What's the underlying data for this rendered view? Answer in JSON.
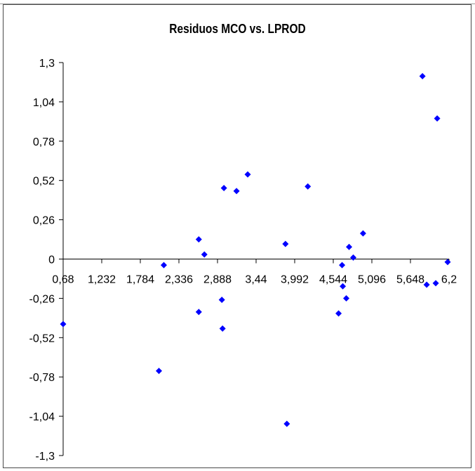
{
  "chart_data": {
    "type": "scatter",
    "title": "Residuos MCO vs. LPROD",
    "xlabel": "",
    "ylabel": "",
    "xlim": [
      0.68,
      6.2
    ],
    "ylim": [
      -1.3,
      1.3
    ],
    "x_ticks": [
      "0,68",
      "1,232",
      "1,784",
      "2,336",
      "2,888",
      "3,44",
      "3,992",
      "4,544",
      "5,096",
      "5,648",
      "6,2"
    ],
    "y_ticks": [
      "1,3",
      "1,04",
      "0,78",
      "0,52",
      "0,26",
      "0",
      "-0,26",
      "-0,52",
      "-0,78",
      "-1,04",
      "-1,3"
    ],
    "marker_color": "#0000ff",
    "marker": "diamond",
    "grid": false,
    "legend": "none",
    "points": [
      {
        "x": 0.68,
        "y": -0.43
      },
      {
        "x": 2.05,
        "y": -0.74
      },
      {
        "x": 2.12,
        "y": -0.04
      },
      {
        "x": 2.62,
        "y": 0.13
      },
      {
        "x": 2.62,
        "y": -0.35
      },
      {
        "x": 2.7,
        "y": 0.03
      },
      {
        "x": 2.95,
        "y": -0.27
      },
      {
        "x": 2.96,
        "y": -0.46
      },
      {
        "x": 2.98,
        "y": 0.47
      },
      {
        "x": 3.16,
        "y": 0.45
      },
      {
        "x": 3.32,
        "y": 0.56
      },
      {
        "x": 3.86,
        "y": 0.1
      },
      {
        "x": 3.88,
        "y": -1.09
      },
      {
        "x": 4.18,
        "y": 0.48
      },
      {
        "x": 4.62,
        "y": -0.36
      },
      {
        "x": 4.67,
        "y": -0.04
      },
      {
        "x": 4.68,
        "y": -0.18
      },
      {
        "x": 4.73,
        "y": -0.26
      },
      {
        "x": 4.77,
        "y": 0.08
      },
      {
        "x": 4.83,
        "y": 0.01
      },
      {
        "x": 4.97,
        "y": 0.17
      },
      {
        "x": 5.82,
        "y": 1.21
      },
      {
        "x": 5.88,
        "y": -0.17
      },
      {
        "x": 6.01,
        "y": -0.16
      },
      {
        "x": 6.03,
        "y": 0.93
      },
      {
        "x": 6.18,
        "y": -0.02
      }
    ]
  }
}
